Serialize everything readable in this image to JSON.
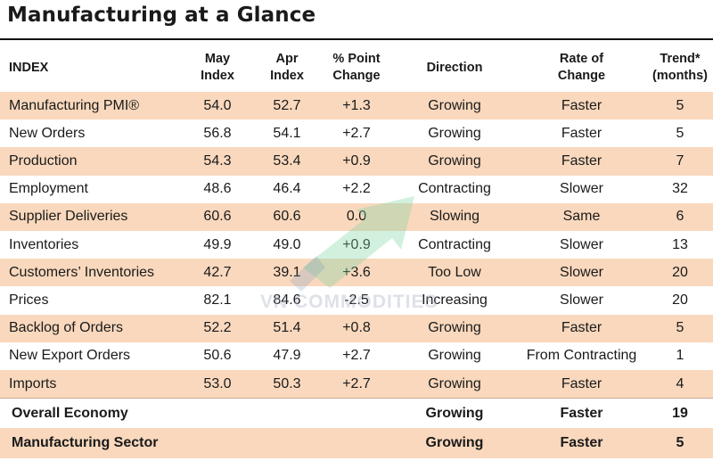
{
  "title": "Manufacturing at a Glance",
  "headers": {
    "index": "INDEX",
    "may": "May\nIndex",
    "apr": "Apr\nIndex",
    "change": "% Point\nChange",
    "direction": "Direction",
    "rate": "Rate of\nChange",
    "trend": "Trend*\n(months)"
  },
  "rows": [
    {
      "index": "Manufacturing PMI®",
      "may": "54.0",
      "apr": "52.7",
      "change": "+1.3",
      "direction": "Growing",
      "rate": "Faster",
      "trend": "5"
    },
    {
      "index": "New Orders",
      "may": "56.8",
      "apr": "54.1",
      "change": "+2.7",
      "direction": "Growing",
      "rate": "Faster",
      "trend": "5"
    },
    {
      "index": "Production",
      "may": "54.3",
      "apr": "53.4",
      "change": "+0.9",
      "direction": "Growing",
      "rate": "Faster",
      "trend": "7"
    },
    {
      "index": "Employment",
      "may": "48.6",
      "apr": "46.4",
      "change": "+2.2",
      "direction": "Contracting",
      "rate": "Slower",
      "trend": "32"
    },
    {
      "index": "Supplier Deliveries",
      "may": "60.6",
      "apr": "60.6",
      "change": "0.0",
      "direction": "Slowing",
      "rate": "Same",
      "trend": "6"
    },
    {
      "index": "Inventories",
      "may": "49.9",
      "apr": "49.0",
      "change": "+0.9",
      "direction": "Contracting",
      "rate": "Slower",
      "trend": "13"
    },
    {
      "index": "Customers’ Inventories",
      "may": "42.7",
      "apr": "39.1",
      "change": "+3.6",
      "direction": "Too Low",
      "rate": "Slower",
      "trend": "20"
    },
    {
      "index": "Prices",
      "may": "82.1",
      "apr": "84.6",
      "change": "-2.5",
      "direction": "Increasing",
      "rate": "Slower",
      "trend": "20"
    },
    {
      "index": "Backlog of Orders",
      "may": "52.2",
      "apr": "51.4",
      "change": "+0.8",
      "direction": "Growing",
      "rate": "Faster",
      "trend": "5"
    },
    {
      "index": "New Export Orders",
      "may": "50.6",
      "apr": "47.9",
      "change": "+2.7",
      "direction": "Growing",
      "rate": "From Contracting",
      "trend": "1"
    },
    {
      "index": "Imports",
      "may": "53.0",
      "apr": "50.3",
      "change": "+2.7",
      "direction": "Growing",
      "rate": "Faster",
      "trend": "4"
    }
  ],
  "summary": [
    {
      "index": "Overall Economy",
      "direction": "Growing",
      "rate": "Faster",
      "trend": "19"
    },
    {
      "index": "Manufacturing Sector",
      "direction": "Growing",
      "rate": "Faster",
      "trend": "5"
    }
  ],
  "watermark": "VN COMMODITIES",
  "colors": {
    "shade": "#f9d8bd",
    "rule": "#111111",
    "watermark_green": "#7fd4a0"
  }
}
